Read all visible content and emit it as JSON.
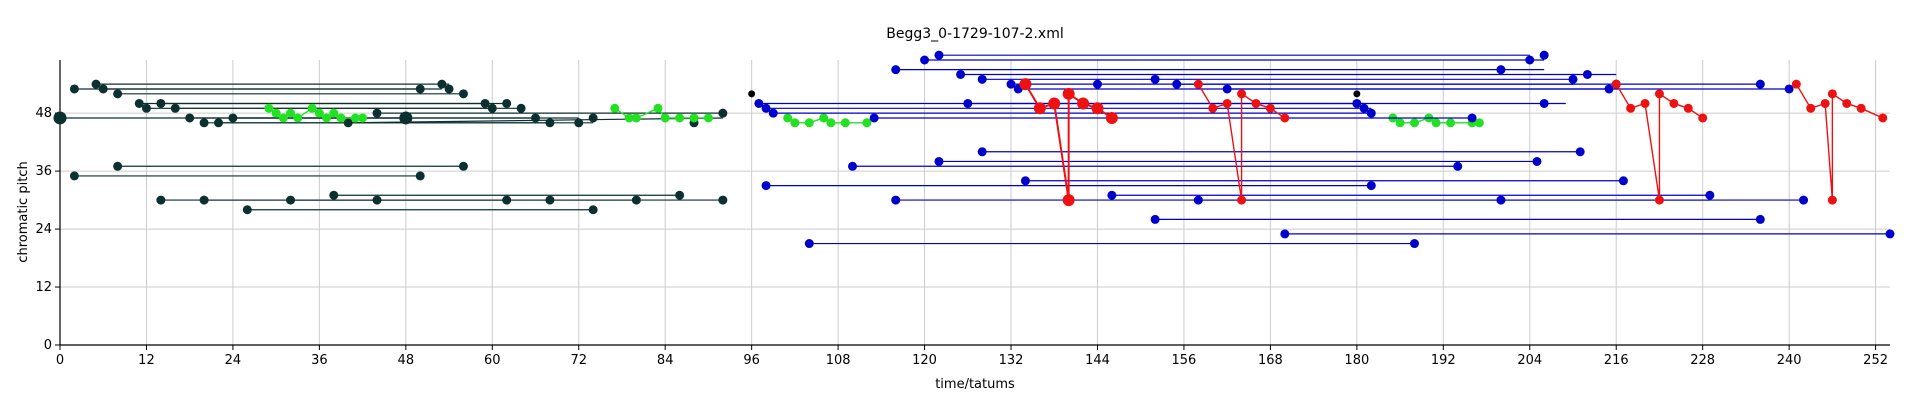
{
  "chart_data": {
    "type": "scatter",
    "title": "Begg3_0-1729-107-2.xml",
    "xlabel": "time/tatums",
    "ylabel": "chromatic pitch",
    "xlim": [
      0,
      254
    ],
    "ylim": [
      0,
      59
    ],
    "xticks": [
      0,
      12,
      24,
      36,
      48,
      60,
      72,
      84,
      96,
      108,
      120,
      132,
      144,
      156,
      168,
      180,
      192,
      204,
      216,
      228,
      240,
      252
    ],
    "yticks": [
      0,
      12,
      24,
      36,
      48
    ],
    "grid": true,
    "legend": "none",
    "colors": {
      "dark": "#0c3030",
      "green": "#22e022",
      "blue": "#0000cc",
      "red": "#ee1111",
      "black": "#000000"
    },
    "series": [
      {
        "color_key": "dark",
        "style": "segments",
        "segments": [
          [
            [
              2,
              53
            ],
            [
              50,
              53
            ]
          ],
          [
            [
              5,
              54
            ],
            [
              54,
              54
            ]
          ],
          [
            [
              6,
              53
            ],
            [
              53,
              53
            ]
          ],
          [
            [
              8,
              52
            ],
            [
              56,
              52
            ]
          ],
          [
            [
              11,
              50
            ],
            [
              59,
              50
            ]
          ],
          [
            [
              12,
              49
            ],
            [
              60,
              49
            ]
          ],
          [
            [
              14,
              50
            ],
            [
              62,
              50
            ]
          ],
          [
            [
              16,
              49
            ],
            [
              64,
              49
            ]
          ],
          [
            [
              18,
              47
            ],
            [
              66,
              47
            ]
          ],
          [
            [
              20,
              46
            ],
            [
              68,
              46
            ]
          ],
          [
            [
              22,
              46
            ],
            [
              74,
              46
            ]
          ],
          [
            [
              24,
              47
            ],
            [
              72,
              47
            ]
          ],
          [
            [
              0,
              47
            ],
            [
              48,
              47
            ]
          ],
          [
            [
              40,
              46
            ],
            [
              92,
              47
            ]
          ],
          [
            [
              44,
              48
            ],
            [
              92,
              48
            ]
          ],
          [
            [
              8,
              37
            ],
            [
              56,
              37
            ]
          ],
          [
            [
              2,
              35
            ],
            [
              50,
              35
            ]
          ],
          [
            [
              14,
              30
            ],
            [
              92,
              30
            ]
          ],
          [
            [
              20,
              30
            ],
            [
              62,
              30
            ]
          ],
          [
            [
              32,
              30
            ],
            [
              80,
              30
            ]
          ],
          [
            [
              38,
              31
            ],
            [
              86,
              31
            ]
          ],
          [
            [
              26,
              28
            ],
            [
              74,
              28
            ]
          ]
        ],
        "points": [
          [
            2,
            53
          ],
          [
            5,
            54
          ],
          [
            6,
            53
          ],
          [
            8,
            52
          ],
          [
            11,
            50
          ],
          [
            12,
            49
          ],
          [
            14,
            50
          ],
          [
            16,
            49
          ],
          [
            18,
            47
          ],
          [
            20,
            46
          ],
          [
            22,
            46
          ],
          [
            24,
            47
          ],
          [
            40,
            46
          ],
          [
            44,
            48
          ],
          [
            50,
            53
          ],
          [
            53,
            54
          ],
          [
            54,
            53
          ],
          [
            56,
            52
          ],
          [
            59,
            50
          ],
          [
            60,
            49
          ],
          [
            62,
            50
          ],
          [
            64,
            49
          ],
          [
            66,
            47
          ],
          [
            68,
            46
          ],
          [
            72,
            46
          ],
          [
            74,
            47
          ],
          [
            88,
            46
          ],
          [
            92,
            48
          ],
          [
            8,
            37
          ],
          [
            2,
            35
          ],
          [
            50,
            35
          ],
          [
            56,
            37
          ],
          [
            14,
            30
          ],
          [
            20,
            30
          ],
          [
            32,
            30
          ],
          [
            38,
            31
          ],
          [
            44,
            30
          ],
          [
            62,
            30
          ],
          [
            68,
            30
          ],
          [
            80,
            30
          ],
          [
            86,
            31
          ],
          [
            92,
            30
          ],
          [
            26,
            28
          ],
          [
            74,
            28
          ]
        ],
        "large_points": [
          [
            0,
            47
          ],
          [
            48,
            47
          ]
        ]
      },
      {
        "color_key": "green",
        "style": "polyline",
        "lines": [
          [
            [
              29,
              49
            ],
            [
              30,
              48
            ],
            [
              31,
              47
            ],
            [
              32,
              48
            ],
            [
              33,
              47
            ],
            [
              35,
              49
            ],
            [
              36,
              48
            ],
            [
              37,
              47
            ],
            [
              38,
              48
            ],
            [
              39,
              47
            ],
            [
              41,
              47
            ],
            [
              42,
              47
            ]
          ],
          [
            [
              77,
              49
            ],
            [
              79,
              47
            ],
            [
              80,
              47
            ],
            [
              83,
              49
            ],
            [
              84,
              47
            ],
            [
              86,
              47
            ],
            [
              88,
              47
            ],
            [
              90,
              47
            ]
          ],
          [
            [
              101,
              47
            ],
            [
              102,
              46
            ],
            [
              104,
              46
            ],
            [
              106,
              47
            ],
            [
              107,
              46
            ],
            [
              109,
              46
            ],
            [
              112,
              46
            ]
          ],
          [
            [
              185,
              47
            ],
            [
              186,
              46
            ],
            [
              188,
              46
            ],
            [
              190,
              47
            ],
            [
              191,
              46
            ],
            [
              193,
              46
            ],
            [
              196,
              46
            ],
            [
              197,
              46
            ]
          ]
        ]
      },
      {
        "color_key": "blue",
        "style": "segments",
        "segments": [
          [
            [
              116,
              57
            ],
            [
              206,
              57
            ]
          ],
          [
            [
              120,
              59
            ],
            [
              206,
              59
            ]
          ],
          [
            [
              122,
              60
            ],
            [
              204,
              60
            ]
          ],
          [
            [
              125,
              56
            ],
            [
              216,
              56
            ]
          ],
          [
            [
              128,
              55
            ],
            [
              210,
              55
            ]
          ],
          [
            [
              132,
              54
            ],
            [
              210,
              54
            ]
          ],
          [
            [
              133,
              53
            ],
            [
              215,
              53
            ]
          ],
          [
            [
              155,
              54
            ],
            [
              236,
              54
            ]
          ],
          [
            [
              162,
              53
            ],
            [
              240,
              53
            ]
          ],
          [
            [
              97,
              50
            ],
            [
              181,
              50
            ]
          ],
          [
            [
              98,
              49
            ],
            [
              182,
              49
            ]
          ],
          [
            [
              99,
              48
            ],
            [
              182,
              48
            ]
          ],
          [
            [
              113,
              47
            ],
            [
              196,
              47
            ]
          ],
          [
            [
              126,
              50
            ],
            [
              209,
              50
            ]
          ],
          [
            [
              128,
              40
            ],
            [
              211,
              40
            ]
          ],
          [
            [
              110,
              37
            ],
            [
              194,
              37
            ]
          ],
          [
            [
              122,
              38
            ],
            [
              205,
              38
            ]
          ],
          [
            [
              98,
              33
            ],
            [
              182,
              33
            ]
          ],
          [
            [
              134,
              34
            ],
            [
              217,
              34
            ]
          ],
          [
            [
              116,
              30
            ],
            [
              229,
              30
            ]
          ],
          [
            [
              146,
              31
            ],
            [
              229,
              31
            ]
          ],
          [
            [
              152,
              26
            ],
            [
              236,
              26
            ]
          ],
          [
            [
              170,
              23
            ],
            [
              254,
              23
            ]
          ],
          [
            [
              104,
              21
            ],
            [
              188,
              21
            ]
          ],
          [
            [
              158,
              30
            ],
            [
              242,
              30
            ]
          ]
        ],
        "points": [
          [
            116,
            57
          ],
          [
            120,
            59
          ],
          [
            122,
            60
          ],
          [
            125,
            56
          ],
          [
            128,
            55
          ],
          [
            132,
            54
          ],
          [
            133,
            53
          ],
          [
            144,
            54
          ],
          [
            152,
            55
          ],
          [
            155,
            54
          ],
          [
            162,
            53
          ],
          [
            200,
            57
          ],
          [
            206,
            60
          ],
          [
            204,
            59
          ],
          [
            210,
            55
          ],
          [
            212,
            56
          ],
          [
            215,
            53
          ],
          [
            216,
            54
          ],
          [
            236,
            54
          ],
          [
            240,
            53
          ],
          [
            97,
            50
          ],
          [
            98,
            49
          ],
          [
            99,
            48
          ],
          [
            113,
            47
          ],
          [
            126,
            50
          ],
          [
            180,
            50
          ],
          [
            181,
            49
          ],
          [
            182,
            48
          ],
          [
            196,
            47
          ],
          [
            206,
            50
          ],
          [
            128,
            40
          ],
          [
            110,
            37
          ],
          [
            122,
            38
          ],
          [
            194,
            37
          ],
          [
            205,
            38
          ],
          [
            211,
            40
          ],
          [
            98,
            33
          ],
          [
            134,
            34
          ],
          [
            182,
            33
          ],
          [
            217,
            34
          ],
          [
            116,
            30
          ],
          [
            146,
            31
          ],
          [
            158,
            30
          ],
          [
            200,
            30
          ],
          [
            229,
            31
          ],
          [
            242,
            30
          ],
          [
            152,
            26
          ],
          [
            236,
            26
          ],
          [
            170,
            23
          ],
          [
            254,
            23
          ],
          [
            104,
            21
          ],
          [
            188,
            21
          ]
        ]
      },
      {
        "color_key": "red",
        "style": "polyline",
        "lines": [
          [
            [
              134,
              54
            ],
            [
              136,
              49
            ],
            [
              138,
              50
            ],
            [
              140,
              30
            ],
            [
              140,
              52
            ],
            [
              142,
              50
            ],
            [
              144,
              49
            ],
            [
              146,
              47
            ]
          ],
          [
            [
              158,
              54
            ],
            [
              160,
              49
            ],
            [
              162,
              50
            ],
            [
              164,
              30
            ],
            [
              164,
              52
            ],
            [
              166,
              50
            ],
            [
              168,
              49
            ],
            [
              170,
              47
            ]
          ],
          [
            [
              216,
              54
            ],
            [
              218,
              49
            ],
            [
              220,
              50
            ],
            [
              222,
              30
            ],
            [
              222,
              52
            ],
            [
              224,
              50
            ],
            [
              226,
              49
            ],
            [
              228,
              47
            ]
          ],
          [
            [
              241,
              54
            ],
            [
              243,
              49
            ],
            [
              245,
              50
            ],
            [
              246,
              30
            ],
            [
              246,
              52
            ],
            [
              248,
              50
            ],
            [
              250,
              49
            ],
            [
              253,
              47
            ]
          ]
        ],
        "large_lines": [
          0
        ]
      },
      {
        "color_key": "black",
        "style": "points",
        "points": [
          [
            96,
            52
          ],
          [
            180,
            52
          ]
        ]
      }
    ]
  }
}
